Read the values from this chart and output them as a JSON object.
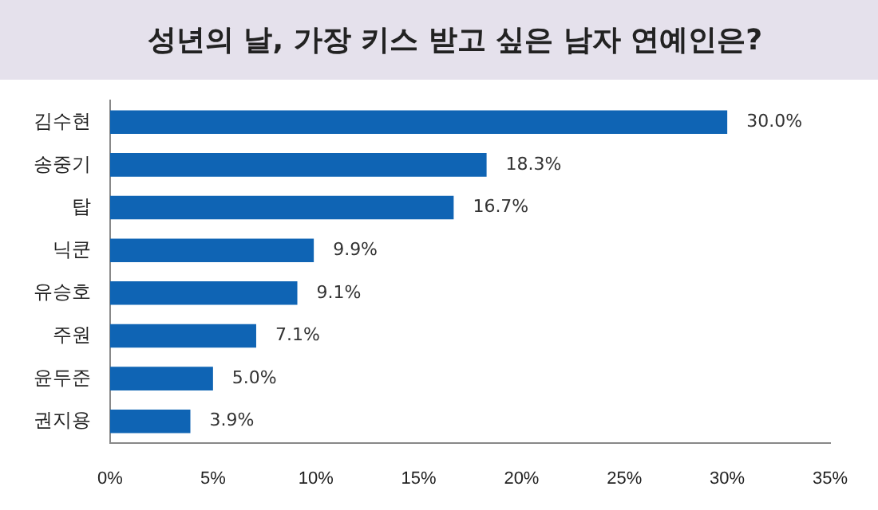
{
  "chart_data": {
    "type": "bar",
    "orientation": "horizontal",
    "title": "성년의 날, 가장 키스 받고 싶은 남자 연예인은?",
    "categories": [
      "김수현",
      "송중기",
      "탑",
      "닉쿤",
      "유승호",
      "주원",
      "윤두준",
      "권지용"
    ],
    "values": [
      30.0,
      18.3,
      16.7,
      9.9,
      9.1,
      7.1,
      5.0,
      3.9
    ],
    "value_labels": [
      "30.0%",
      "18.3%",
      "16.7%",
      "9.9%",
      "9.1%",
      "7.1%",
      "5.0%",
      "3.9%"
    ],
    "color": "#0f64b4",
    "xlim": [
      0,
      35
    ],
    "xticks": [
      {
        "value": 0,
        "label": "0%"
      },
      {
        "value": 5,
        "label": "5%"
      },
      {
        "value": 10,
        "label": "10%"
      },
      {
        "value": 15,
        "label": "15%"
      },
      {
        "value": 20,
        "label": "20%"
      },
      {
        "value": 25,
        "label": "25%"
      },
      {
        "value": 30,
        "label": "30%"
      },
      {
        "value": 35,
        "label": "35%"
      }
    ],
    "grid": false,
    "legend": false
  }
}
